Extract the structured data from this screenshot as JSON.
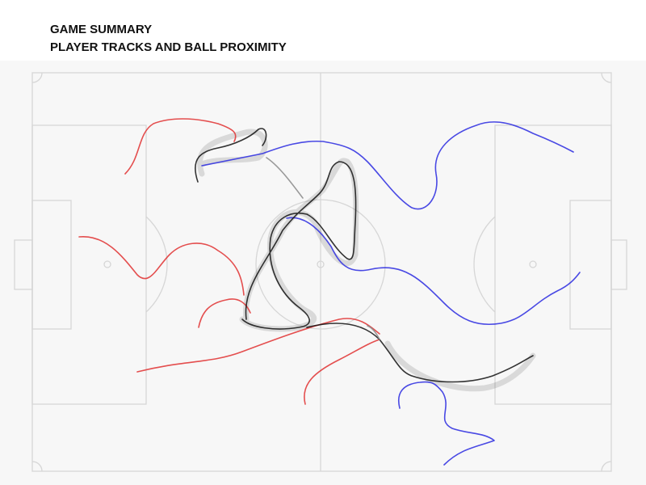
{
  "header": {
    "title": "GAME SUMMARY",
    "subtitle": "PLAYER TRACKS AND BALL PROXIMITY"
  }
}
